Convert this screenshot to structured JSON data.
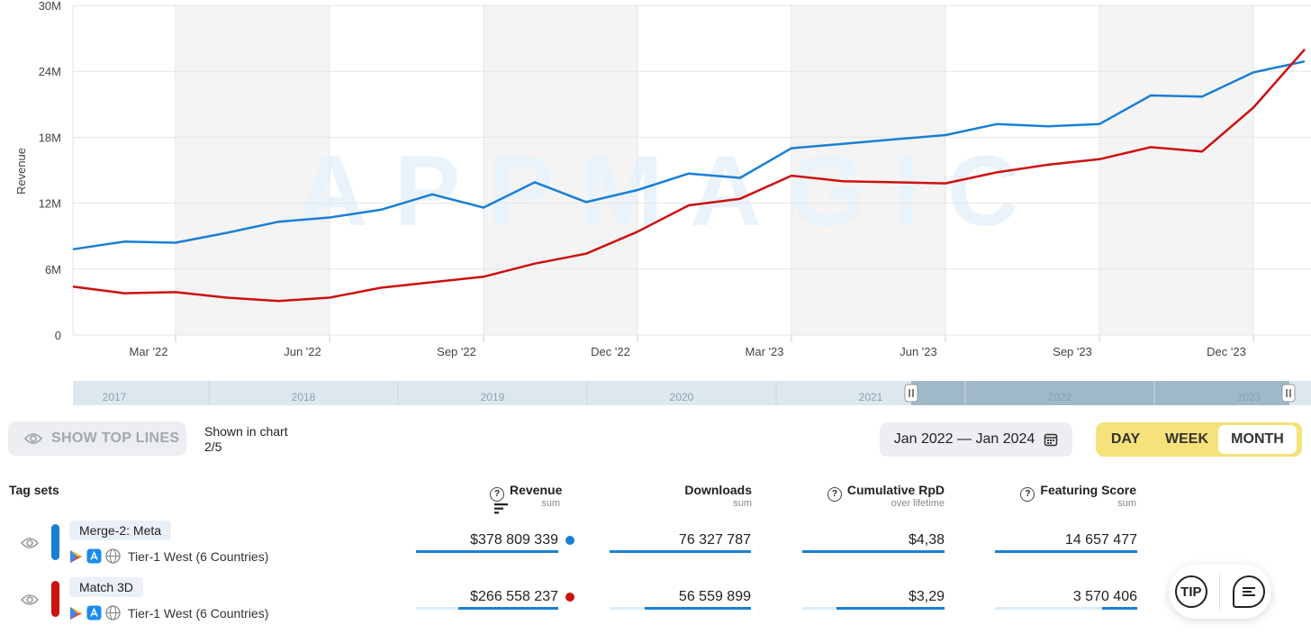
{
  "chart_data": {
    "type": "line",
    "ylabel": "Revenue",
    "yticks": [
      "0",
      "6M",
      "12M",
      "18M",
      "24M",
      "30M"
    ],
    "ylim": [
      0,
      30
    ],
    "xticks": [
      "Mar '22",
      "Jun '22",
      "Sep '22",
      "Dec '22",
      "Mar '23",
      "Jun '23",
      "Sep '23",
      "Dec '23"
    ],
    "x": [
      "2022-01",
      "2022-02",
      "2022-03",
      "2022-04",
      "2022-05",
      "2022-06",
      "2022-07",
      "2022-08",
      "2022-09",
      "2022-10",
      "2022-11",
      "2022-12",
      "2023-01",
      "2023-02",
      "2023-03",
      "2023-04",
      "2023-05",
      "2023-06",
      "2023-07",
      "2023-08",
      "2023-09",
      "2023-10",
      "2023-11",
      "2023-12",
      "2024-01"
    ],
    "series": [
      {
        "name": "Merge-2: Meta",
        "color": "#1a7fd4",
        "values": [
          7.8,
          8.5,
          8.4,
          9.3,
          10.3,
          10.7,
          11.4,
          12.8,
          11.6,
          13.9,
          12.1,
          13.2,
          14.7,
          14.3,
          17.0,
          17.4,
          17.8,
          18.2,
          19.2,
          19.0,
          19.2,
          21.8,
          21.7,
          23.9,
          24.9
        ]
      },
      {
        "name": "Match 3D",
        "color": "#cc1111",
        "values": [
          4.4,
          3.8,
          3.9,
          3.4,
          3.1,
          3.4,
          4.3,
          4.8,
          5.3,
          6.5,
          7.4,
          9.4,
          11.8,
          12.4,
          14.5,
          14.0,
          13.9,
          13.8,
          14.8,
          15.5,
          16.0,
          17.1,
          16.7,
          20.7,
          26.0
        ]
      }
    ],
    "grid": true,
    "watermark": "APPMAGIC"
  },
  "navigator": {
    "years": [
      "2017",
      "2018",
      "2019",
      "2020",
      "2021",
      "2022",
      "2023"
    ]
  },
  "controls": {
    "show_top_lines": "SHOW TOP LINES",
    "shown_label": "Shown in chart",
    "shown_count": "2/5",
    "date_range": "Jan 2022 — Jan 2024",
    "periods": [
      "DAY",
      "WEEK",
      "MONTH"
    ],
    "active_period": "MONTH"
  },
  "table": {
    "tag_sets_label": "Tag sets",
    "columns": [
      {
        "label": "Revenue",
        "sub": "sum"
      },
      {
        "label": "Downloads",
        "sub": "sum"
      },
      {
        "label": "Cumulative RpD",
        "sub": "over lifetime"
      },
      {
        "label": "Featuring Score",
        "sub": "sum"
      }
    ],
    "rows": [
      {
        "tag": "Merge-2: Meta",
        "region": "Tier-1 West (6 Countries)",
        "color": "#1a7fd4",
        "revenue": "$378 809 339",
        "downloads": "76 327 787",
        "rpd": "$4,38",
        "featuring": "14 657 477",
        "fill": [
          1.0,
          1.0,
          1.0,
          1.0
        ]
      },
      {
        "tag": "Match 3D",
        "region": "Tier-1 West (6 Countries)",
        "color": "#cc1111",
        "revenue": "$266 558 237",
        "downloads": "56 559 899",
        "rpd": "$3,29",
        "featuring": "3 570 406",
        "fill": [
          0.7,
          0.75,
          0.76,
          0.25
        ]
      }
    ]
  },
  "float": {
    "tip": "TIP"
  }
}
